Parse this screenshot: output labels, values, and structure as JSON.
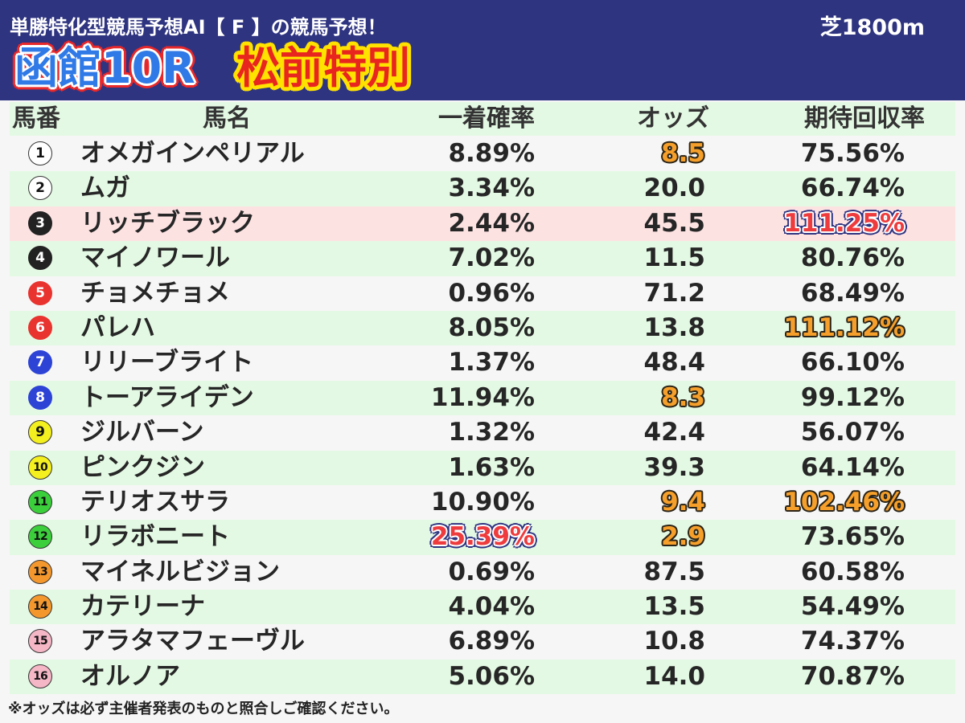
{
  "header": {
    "title": "単勝特化型競馬予想AI【 F 】の競馬予想！",
    "course": "芝1800m",
    "race": "函館10R",
    "race_name": "松前特別"
  },
  "colors": {
    "header_bg": "#2f3480",
    "page_bg": "#f6f6f6",
    "row_alt_bg": "#e4f9e4",
    "row_highlight_bg": "#fde2e2",
    "emphasis_orange": "#f6a02b",
    "emphasis_red": "#ee3b3d",
    "race_blue": "#2f7ae6",
    "race_name_red": "#e8261f"
  },
  "table": {
    "columns": {
      "number": "馬番",
      "name": "馬名",
      "win_probability": "一着確率",
      "odds": "オッズ",
      "expected_return": "期待回収率"
    },
    "rows": [
      {
        "number": "1",
        "frame_color": "#ffffff",
        "number_color": "#111111",
        "name": "オメガインペリアル",
        "win_probability": "8.89%",
        "odds": "8.5",
        "expected_return": "75.56%",
        "odds_emphasis": "orange"
      },
      {
        "number": "2",
        "frame_color": "#ffffff",
        "number_color": "#111111",
        "name": "ムガ",
        "win_probability": "3.34%",
        "odds": "20.0",
        "expected_return": "66.74%"
      },
      {
        "number": "3",
        "frame_color": "#222222",
        "number_color": "#ffffff",
        "name": "リッチブラック",
        "win_probability": "2.44%",
        "odds": "45.5",
        "expected_return": "111.25%",
        "expected_return_emphasis": "red",
        "highlight": true
      },
      {
        "number": "4",
        "frame_color": "#222222",
        "number_color": "#ffffff",
        "name": "マイノワール",
        "win_probability": "7.02%",
        "odds": "11.5",
        "expected_return": "80.76%"
      },
      {
        "number": "5",
        "frame_color": "#e8332f",
        "number_color": "#ffffff",
        "name": "チョメチョメ",
        "win_probability": "0.96%",
        "odds": "71.2",
        "expected_return": "68.49%"
      },
      {
        "number": "6",
        "frame_color": "#e8332f",
        "number_color": "#ffffff",
        "name": "パレハ",
        "win_probability": "8.05%",
        "odds": "13.8",
        "expected_return": "111.12%",
        "expected_return_emphasis": "orange"
      },
      {
        "number": "7",
        "frame_color": "#2d43d6",
        "number_color": "#ffffff",
        "name": "リリーブライト",
        "win_probability": "1.37%",
        "odds": "48.4",
        "expected_return": "66.10%"
      },
      {
        "number": "8",
        "frame_color": "#2d43d6",
        "number_color": "#ffffff",
        "name": "トーアライデン",
        "win_probability": "11.94%",
        "odds": "8.3",
        "expected_return": "99.12%",
        "odds_emphasis": "orange"
      },
      {
        "number": "9",
        "frame_color": "#f4ef1f",
        "number_color": "#111111",
        "name": "ジルバーン",
        "win_probability": "1.32%",
        "odds": "42.4",
        "expected_return": "56.07%"
      },
      {
        "number": "10",
        "frame_color": "#f4ef1f",
        "number_color": "#111111",
        "name": "ピンクジン",
        "win_probability": "1.63%",
        "odds": "39.3",
        "expected_return": "64.14%"
      },
      {
        "number": "11",
        "frame_color": "#3bcf3b",
        "number_color": "#111111",
        "name": "テリオスサラ",
        "win_probability": "10.90%",
        "odds": "9.4",
        "expected_return": "102.46%",
        "odds_emphasis": "orange",
        "expected_return_emphasis": "orange"
      },
      {
        "number": "12",
        "frame_color": "#3bcf3b",
        "number_color": "#111111",
        "name": "リラボニート",
        "win_probability": "25.39%",
        "odds": "2.9",
        "expected_return": "73.65%",
        "win_probability_emphasis": "red",
        "odds_emphasis": "orange"
      },
      {
        "number": "13",
        "frame_color": "#f4982d",
        "number_color": "#111111",
        "name": "マイネルビジョン",
        "win_probability": "0.69%",
        "odds": "87.5",
        "expected_return": "60.58%"
      },
      {
        "number": "14",
        "frame_color": "#f4982d",
        "number_color": "#111111",
        "name": "カテリーナ",
        "win_probability": "4.04%",
        "odds": "13.5",
        "expected_return": "54.49%"
      },
      {
        "number": "15",
        "frame_color": "#f5b6c6",
        "number_color": "#111111",
        "name": "アラタマフェーヴル",
        "win_probability": "6.89%",
        "odds": "10.8",
        "expected_return": "74.37%"
      },
      {
        "number": "16",
        "frame_color": "#f5b6c6",
        "number_color": "#111111",
        "name": "オルノア",
        "win_probability": "5.06%",
        "odds": "14.0",
        "expected_return": "70.87%"
      }
    ]
  },
  "footer": {
    "note": "※オッズは必ず主催者発表のものと照合しご確認ください。"
  }
}
